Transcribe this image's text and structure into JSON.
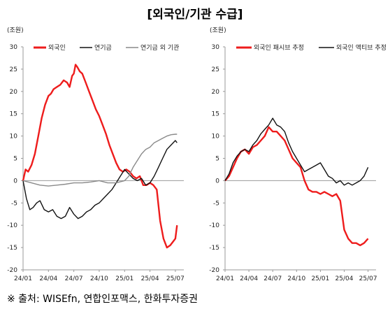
{
  "title": "[외국인/기관 수급]",
  "source": "※ 출처: WISEfn, 연합인포맥스, 한화투자증권",
  "chart_data": [
    {
      "type": "line",
      "unit": "(조원)",
      "ylim": [
        -20,
        30
      ],
      "yticks": [
        30,
        25,
        20,
        15,
        10,
        5,
        0,
        -5,
        -10,
        -15,
        -20
      ],
      "xlim": [
        0,
        19
      ],
      "xtick_labels": [
        "24/01",
        "24/04",
        "24/07",
        "24/10",
        "25/01",
        "25/04",
        "25/07"
      ],
      "legend_position": "top",
      "series": [
        {
          "name": "외국인",
          "color": "#ee1c1c",
          "x": [
            0,
            0.3,
            0.6,
            1,
            1.4,
            1.8,
            2.2,
            2.6,
            3,
            3.3,
            3.6,
            4,
            4.4,
            4.8,
            5.2,
            5.5,
            5.8,
            6,
            6.2,
            6.4,
            6.7,
            7,
            7.4,
            7.8,
            8.2,
            8.6,
            9,
            9.4,
            9.8,
            10.2,
            10.6,
            11,
            11.4,
            11.8,
            12.2,
            12.6,
            13,
            13.4,
            13.8,
            14.2,
            14.6,
            15,
            15.4,
            15.8,
            16.2,
            16.6,
            17,
            17.4,
            17.8,
            18,
            18.2
          ],
          "values": [
            0,
            2.5,
            2,
            3.5,
            6,
            10,
            14,
            17,
            19,
            19.5,
            20.5,
            21,
            21.5,
            22.5,
            22,
            21,
            23.5,
            24,
            26,
            25.5,
            24.5,
            24,
            22,
            20,
            18,
            16,
            14.5,
            12.5,
            10.5,
            8,
            6,
            4,
            2.5,
            2,
            2.5,
            2,
            1,
            0.5,
            1,
            -1,
            -1,
            -0.5,
            -1,
            -2,
            -9,
            -13,
            -15,
            -14.5,
            -13.5,
            -13,
            -10
          ]
        },
        {
          "name": "연기금",
          "color": "#111111",
          "x": [
            0,
            0.4,
            0.8,
            1.2,
            1.6,
            2,
            2.5,
            3,
            3.5,
            4,
            4.5,
            5,
            5.5,
            6,
            6.5,
            7,
            7.5,
            8,
            8.5,
            9,
            9.5,
            10,
            10.5,
            11,
            11.5,
            12,
            12.5,
            13,
            13.5,
            14,
            14.5,
            15,
            15.5,
            16,
            16.5,
            17,
            17.5,
            18,
            18.2
          ],
          "values": [
            0,
            -4,
            -6.5,
            -6,
            -5,
            -4.5,
            -6.5,
            -7,
            -6.5,
            -8,
            -8.5,
            -8,
            -6,
            -7.5,
            -8.5,
            -8,
            -7,
            -6.5,
            -5.5,
            -5,
            -4,
            -3,
            -2,
            -0.5,
            1,
            2.5,
            1.5,
            0.5,
            0,
            0.5,
            -1,
            -0.5,
            1,
            3,
            5,
            7,
            8,
            9,
            8.5
          ]
        },
        {
          "name": "연기금 외 기관",
          "color": "#8a8a8a",
          "x": [
            0,
            1,
            2,
            3,
            4,
            5,
            6,
            7,
            8,
            9,
            10,
            11,
            12,
            12.5,
            13,
            13.5,
            14,
            14.5,
            15,
            15.5,
            16,
            16.5,
            17,
            17.5,
            18,
            18.2
          ],
          "values": [
            0,
            -0.5,
            -1,
            -1.2,
            -1,
            -0.8,
            -0.5,
            -0.5,
            -0.3,
            0,
            -0.5,
            -0.5,
            0,
            1,
            3,
            4.5,
            6,
            7,
            7.5,
            8.5,
            9,
            9.5,
            10,
            10.3,
            10.4,
            10.4
          ]
        }
      ]
    },
    {
      "type": "line",
      "unit": "(조원)",
      "ylim": [
        -20,
        30
      ],
      "yticks": [
        30,
        25,
        20,
        15,
        10,
        5,
        0,
        -5,
        -10,
        -15,
        -20
      ],
      "xlim": [
        0,
        19
      ],
      "xtick_labels": [
        "24/01",
        "24/04",
        "24/07",
        "24/10",
        "25/01",
        "25/04",
        "25/07"
      ],
      "legend_position": "top",
      "series": [
        {
          "name": "외국인 패시브 추정",
          "color": "#ee1c1c",
          "x": [
            0,
            0.5,
            1,
            1.5,
            2,
            2.5,
            3,
            3.5,
            4,
            4.5,
            5,
            5.5,
            6,
            6.5,
            7,
            7.5,
            8,
            8.5,
            9,
            9.5,
            10,
            10.5,
            11,
            11.5,
            12,
            12.5,
            13,
            13.5,
            14,
            14.5,
            15,
            15.5,
            16,
            16.5,
            17,
            17.5,
            18
          ],
          "values": [
            0,
            1,
            3,
            5,
            6.5,
            7,
            6,
            7.5,
            8,
            9,
            10,
            12,
            11,
            11,
            10,
            9,
            7,
            5,
            4,
            3,
            0,
            -2,
            -2.5,
            -2.5,
            -3,
            -2.5,
            -3,
            -3.5,
            -3,
            -4.5,
            -11,
            -13,
            -14,
            -14,
            -14.5,
            -14,
            -13
          ]
        },
        {
          "name": "외국인 액티브 추정",
          "color": "#111111",
          "x": [
            0,
            0.5,
            1,
            1.5,
            2,
            2.5,
            3,
            3.5,
            4,
            4.5,
            5,
            5.5,
            6,
            6.5,
            7,
            7.5,
            8,
            8.5,
            9,
            9.5,
            10,
            10.5,
            11,
            11.5,
            12,
            12.5,
            13,
            13.5,
            14,
            14.5,
            15,
            15.5,
            16,
            16.5,
            17,
            17.5,
            18
          ],
          "values": [
            0,
            1.5,
            4,
            5.5,
            6.5,
            7,
            6.5,
            8,
            9,
            10.5,
            11.5,
            12.5,
            14,
            12.5,
            12,
            11,
            8.5,
            6.5,
            5,
            3.5,
            2,
            2.5,
            3,
            3.5,
            4,
            2.5,
            1,
            0.5,
            -0.5,
            0,
            -1,
            -0.5,
            -1,
            -0.5,
            0,
            1,
            3
          ]
        }
      ]
    }
  ]
}
